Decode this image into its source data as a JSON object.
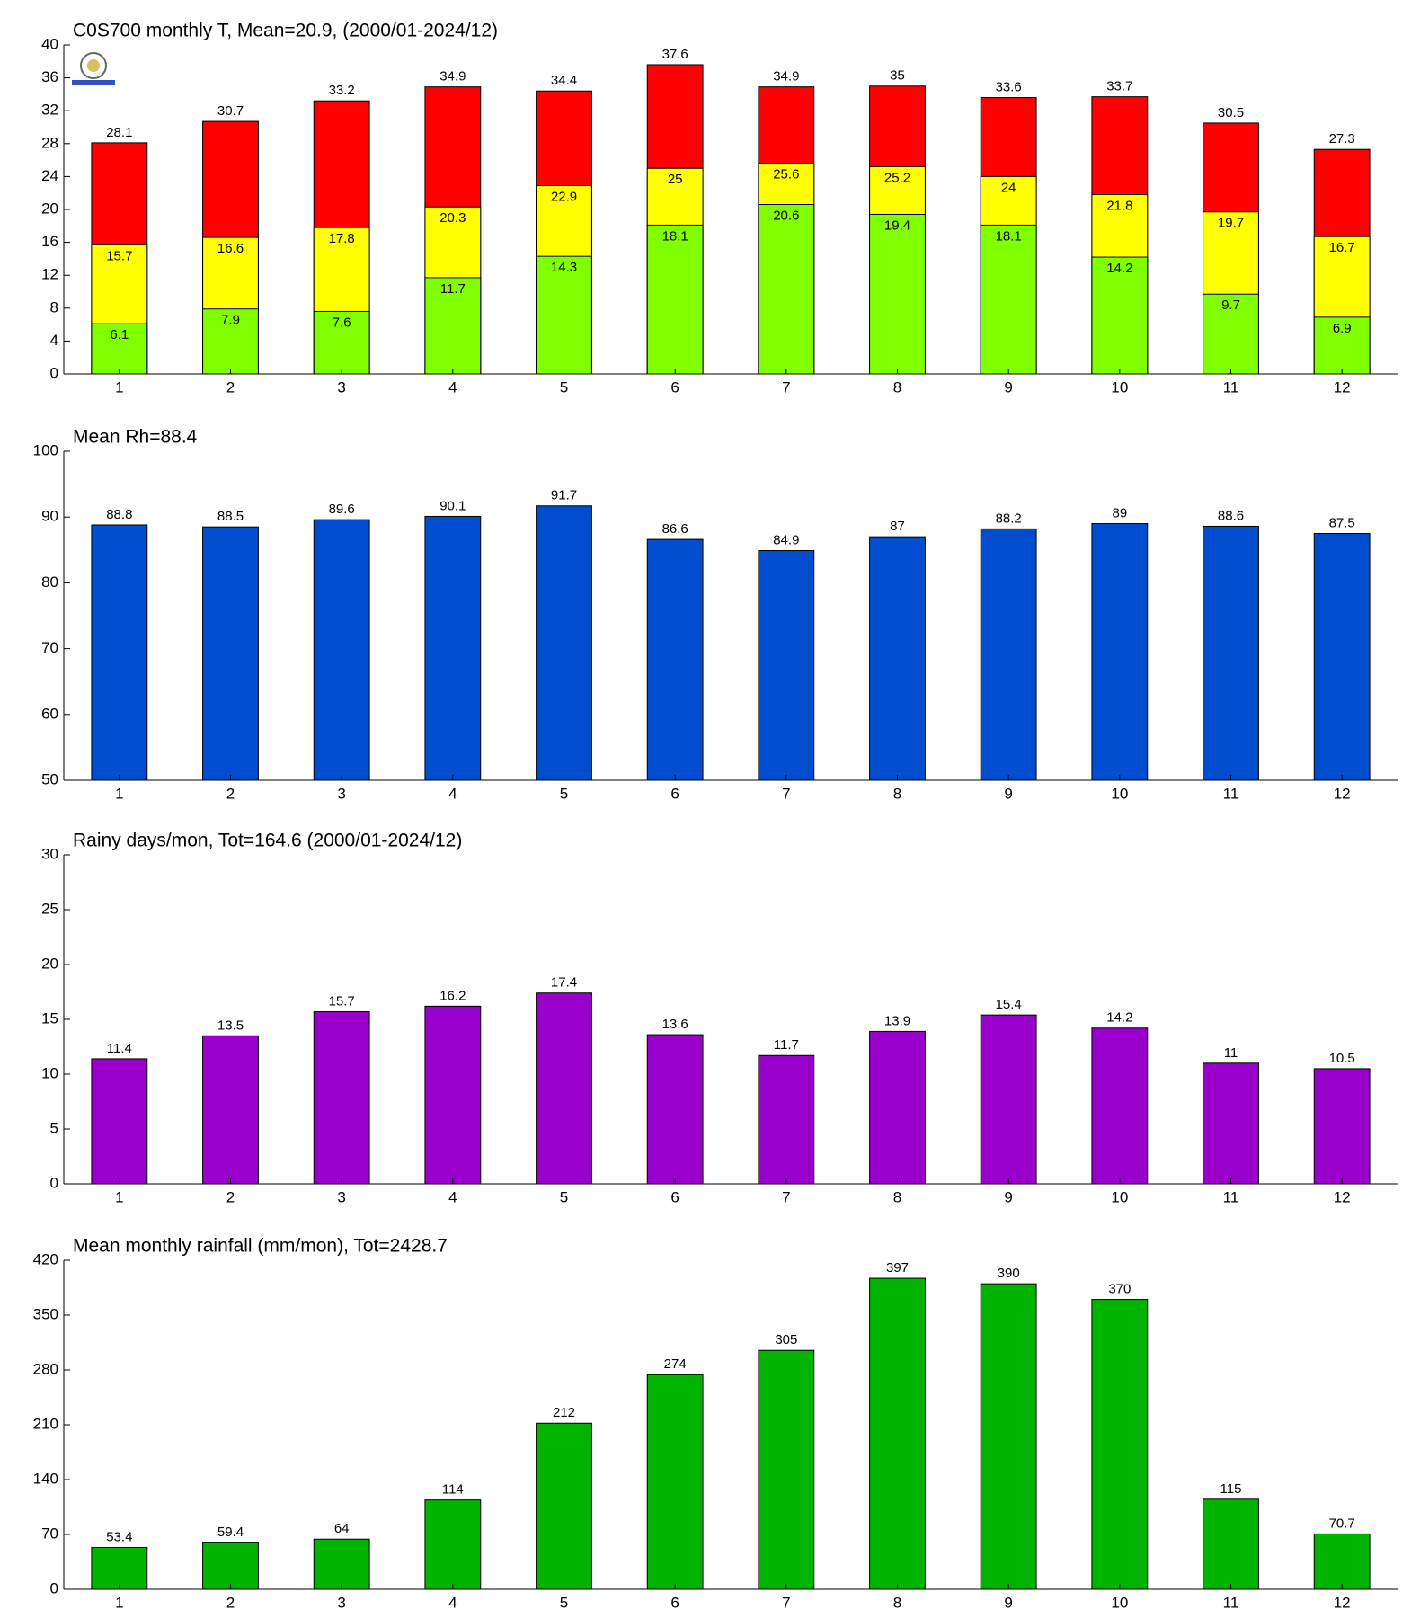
{
  "chart_data": [
    {
      "type": "bar",
      "title": "C0S700 monthly T, Mean=20.9, (2000/01-2024/12)",
      "categories": [
        "1",
        "2",
        "3",
        "4",
        "5",
        "6",
        "7",
        "8",
        "9",
        "10",
        "11",
        "12"
      ],
      "series": [
        {
          "color": "#ff0000",
          "values": [
            28.1,
            30.7,
            33.2,
            34.9,
            34.4,
            37.6,
            34.9,
            35,
            33.6,
            33.7,
            30.5,
            27.3
          ]
        },
        {
          "color": "#ffff00",
          "values": [
            15.7,
            16.6,
            17.8,
            20.3,
            22.9,
            25,
            25.6,
            25.2,
            24,
            21.8,
            19.7,
            16.7
          ]
        },
        {
          "color": "#80ff00",
          "values": [
            6.1,
            7.9,
            7.6,
            11.7,
            14.3,
            18.1,
            20.6,
            19.4,
            18.1,
            14.2,
            9.7,
            6.9
          ]
        }
      ],
      "ylim": [
        0,
        40
      ],
      "yticks": [
        0,
        4,
        8,
        12,
        16,
        20,
        24,
        28,
        32,
        36,
        40
      ]
    },
    {
      "type": "bar",
      "title": "Mean Rh=88.4",
      "categories": [
        "1",
        "2",
        "3",
        "4",
        "5",
        "6",
        "7",
        "8",
        "9",
        "10",
        "11",
        "12"
      ],
      "values": [
        88.8,
        88.5,
        89.6,
        90.1,
        91.7,
        86.6,
        84.9,
        87,
        88.2,
        89,
        88.6,
        87.5
      ],
      "color": "#004ecf",
      "ylim": [
        50,
        100
      ],
      "yticks": [
        50,
        60,
        70,
        80,
        90,
        100
      ]
    },
    {
      "type": "bar",
      "title": "Rainy days/mon, Tot=164.6 (2000/01-2024/12)",
      "categories": [
        "1",
        "2",
        "3",
        "4",
        "5",
        "6",
        "7",
        "8",
        "9",
        "10",
        "11",
        "12"
      ],
      "values": [
        11.4,
        13.5,
        15.7,
        16.2,
        17.4,
        13.6,
        11.7,
        13.9,
        15.4,
        14.2,
        11,
        10.5
      ],
      "color": "#9900cc",
      "ylim": [
        0,
        30
      ],
      "yticks": [
        0,
        5,
        10,
        15,
        20,
        25,
        30
      ]
    },
    {
      "type": "bar",
      "title": "Mean monthly rainfall (mm/mon), Tot=2428.7",
      "categories": [
        "1",
        "2",
        "3",
        "4",
        "5",
        "6",
        "7",
        "8",
        "9",
        "10",
        "11",
        "12"
      ],
      "values": [
        53.4,
        59.4,
        64,
        114,
        212,
        274,
        305,
        397,
        390,
        370,
        115,
        70.7
      ],
      "color": "#00b400",
      "ylim": [
        0,
        420
      ],
      "yticks": [
        0,
        70,
        140,
        210,
        280,
        350,
        420
      ]
    }
  ]
}
